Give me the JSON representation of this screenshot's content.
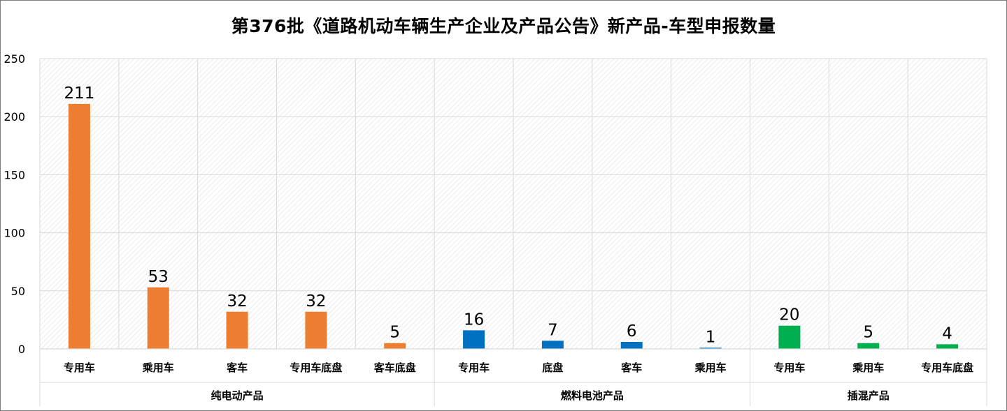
{
  "chart_data": {
    "type": "bar",
    "title": "第376批《道路机动车辆生产企业及产品公告》新产品-车型申报数量",
    "xlabel": "",
    "ylabel": "",
    "ylim": [
      0,
      250
    ],
    "yticks": [
      0,
      50,
      100,
      150,
      200,
      250
    ],
    "grid": true,
    "legend": "none",
    "groups": [
      {
        "name": "纯电动产品",
        "color": "#ED7D31",
        "categories": [
          "专用车",
          "乘用车",
          "客车",
          "专用车底盘",
          "客车底盘"
        ],
        "values": [
          211,
          53,
          32,
          32,
          5
        ]
      },
      {
        "name": "燃料电池产品",
        "color": "#0070C0",
        "categories": [
          "专用车",
          "底盘",
          "客车",
          "乘用车"
        ],
        "values": [
          16,
          7,
          6,
          1
        ]
      },
      {
        "name": "插混产品",
        "color": "#00B050",
        "categories": [
          "专用车",
          "乘用车",
          "专用车底盘"
        ],
        "values": [
          20,
          5,
          4
        ]
      }
    ]
  }
}
